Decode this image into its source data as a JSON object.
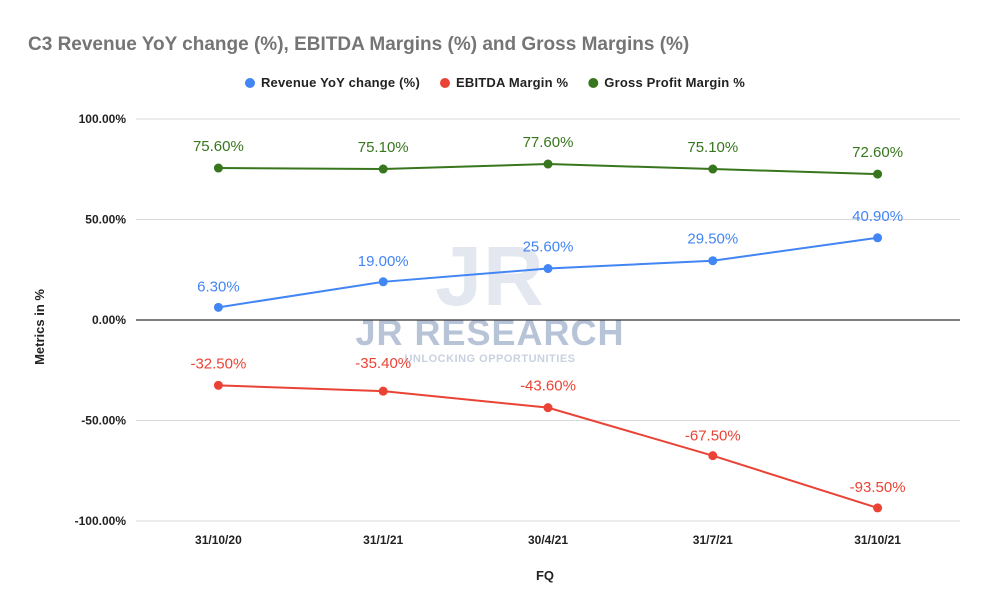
{
  "chart_data": {
    "type": "line",
    "title": "C3 Revenue YoY change (%), EBITDA Margins (%) and Gross Margins (%)",
    "xlabel": "FQ",
    "ylabel": "Metrics in %",
    "categories": [
      "31/10/20",
      "31/1/21",
      "30/4/21",
      "31/7/21",
      "31/10/21"
    ],
    "ylim": [
      -100,
      100
    ],
    "yticks": [
      100,
      50,
      0,
      -50,
      -100
    ],
    "ytick_labels": [
      "100.00%",
      "50.00%",
      "0.00%",
      "-50.00%",
      "-100.00%"
    ],
    "grid": true,
    "legend_position": "top",
    "series": [
      {
        "name": "Revenue YoY change (%)",
        "color": "#4285f4",
        "values": [
          6.3,
          19.0,
          25.6,
          29.5,
          40.9
        ],
        "labels": [
          "6.30%",
          "19.00%",
          "25.60%",
          "29.50%",
          "40.90%"
        ]
      },
      {
        "name": "EBITDA Margin %",
        "color": "#ea4335",
        "values": [
          -32.5,
          -35.4,
          -43.6,
          -67.5,
          -93.5
        ],
        "labels": [
          "-32.50%",
          "-35.40%",
          "-43.60%",
          "-67.50%",
          "-93.50%"
        ]
      },
      {
        "name": "Gross Profit Margin %",
        "color": "#38761d",
        "values": [
          75.6,
          75.1,
          77.6,
          75.1,
          72.6
        ],
        "labels": [
          "75.60%",
          "75.10%",
          "77.60%",
          "75.10%",
          "72.60%"
        ]
      }
    ]
  },
  "watermark": {
    "logo_text": "JR",
    "name": "JR RESEARCH",
    "tagline": "UNLOCKING OPPORTUNITIES"
  }
}
